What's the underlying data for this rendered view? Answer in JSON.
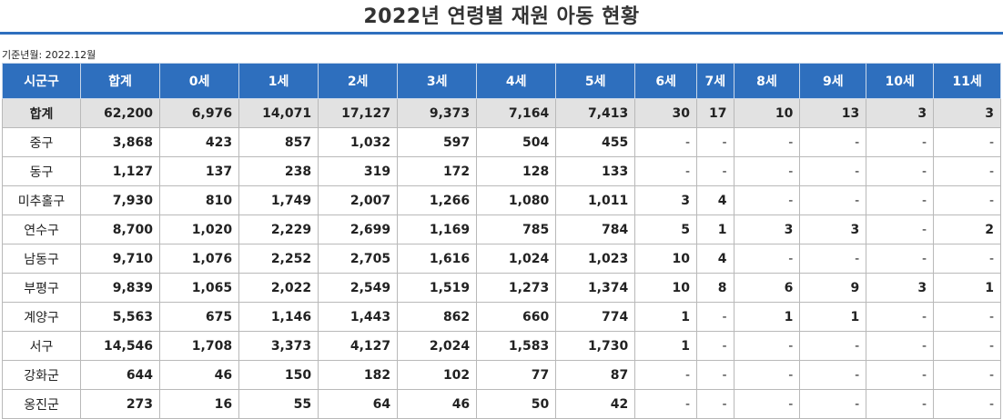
{
  "title": "2022년 연령별 재원 아동 현황",
  "basis": "기준년월: 2022.12월",
  "table": {
    "headers": [
      "시군구",
      "합계",
      "0세",
      "1세",
      "2세",
      "3세",
      "4세",
      "5세",
      "6세",
      "7세",
      "8세",
      "9세",
      "10세",
      "11세"
    ],
    "rows": [
      [
        "합계",
        "62,200",
        "6,976",
        "14,071",
        "17,127",
        "9,373",
        "7,164",
        "7,413",
        "30",
        "17",
        "10",
        "13",
        "3",
        "3"
      ],
      [
        "중구",
        "3,868",
        "423",
        "857",
        "1,032",
        "597",
        "504",
        "455",
        "-",
        "-",
        "-",
        "-",
        "-",
        "-"
      ],
      [
        "동구",
        "1,127",
        "137",
        "238",
        "319",
        "172",
        "128",
        "133",
        "-",
        "-",
        "-",
        "-",
        "-",
        "-"
      ],
      [
        "미추홀구",
        "7,930",
        "810",
        "1,749",
        "2,007",
        "1,266",
        "1,080",
        "1,011",
        "3",
        "4",
        "-",
        "-",
        "-",
        "-"
      ],
      [
        "연수구",
        "8,700",
        "1,020",
        "2,229",
        "2,699",
        "1,169",
        "785",
        "784",
        "5",
        "1",
        "3",
        "3",
        "-",
        "2"
      ],
      [
        "남동구",
        "9,710",
        "1,076",
        "2,252",
        "2,705",
        "1,616",
        "1,024",
        "1,023",
        "10",
        "4",
        "-",
        "-",
        "-",
        "-"
      ],
      [
        "부평구",
        "9,839",
        "1,065",
        "2,022",
        "2,549",
        "1,519",
        "1,273",
        "1,374",
        "10",
        "8",
        "6",
        "9",
        "3",
        "1"
      ],
      [
        "계양구",
        "5,563",
        "675",
        "1,146",
        "1,443",
        "862",
        "660",
        "774",
        "1",
        "-",
        "1",
        "1",
        "-",
        "-"
      ],
      [
        "서구",
        "14,546",
        "1,708",
        "3,373",
        "4,127",
        "2,024",
        "1,583",
        "1,730",
        "1",
        "-",
        "-",
        "-",
        "-",
        "-"
      ],
      [
        "강화군",
        "644",
        "46",
        "150",
        "182",
        "102",
        "77",
        "87",
        "-",
        "-",
        "-",
        "-",
        "-",
        "-"
      ],
      [
        "옹진군",
        "273",
        "16",
        "55",
        "64",
        "46",
        "50",
        "42",
        "-",
        "-",
        "-",
        "-",
        "-",
        "-"
      ]
    ]
  }
}
